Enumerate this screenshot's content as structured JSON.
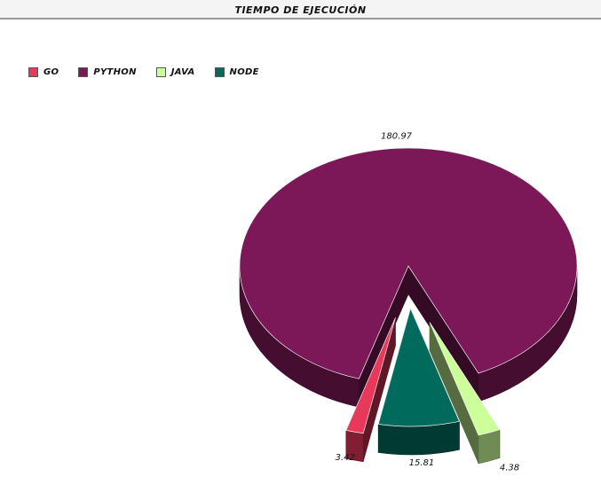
{
  "chart_data": {
    "type": "pie",
    "title": "TIEMPO DE EJECUCIÓN",
    "legend_position": "top-left",
    "series": [
      {
        "name": "GO",
        "value": 3.42,
        "color": "#e8395a"
      },
      {
        "name": "PYTHON",
        "value": 180.97,
        "color": "#7d1858"
      },
      {
        "name": "JAVA",
        "value": 4.38,
        "color": "#ccff99"
      },
      {
        "name": "NODE",
        "value": 15.81,
        "color": "#006a5c"
      }
    ]
  }
}
